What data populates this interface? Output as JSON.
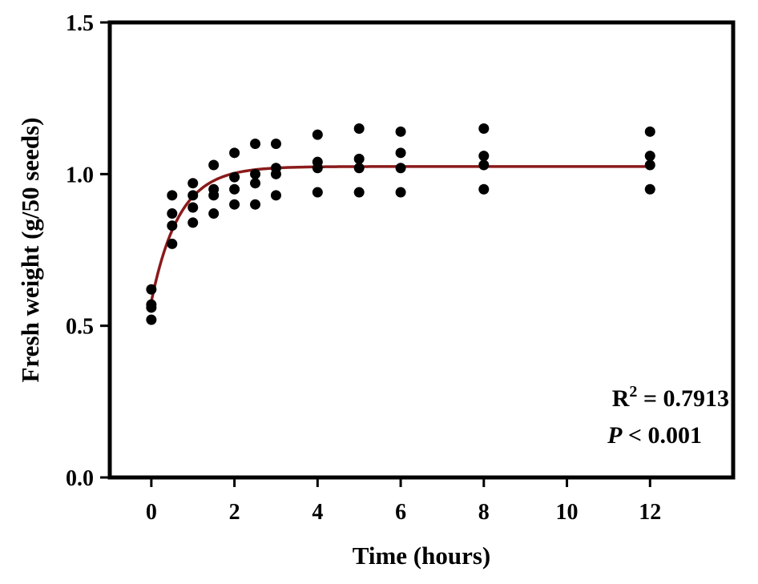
{
  "chart_data": {
    "type": "scatter",
    "xlabel": "Time (hours)",
    "ylabel": "Fresh weight (g/50 seeds)",
    "xlim": [
      -1,
      14
    ],
    "ylim": [
      0.0,
      1.5
    ],
    "x_ticks": [
      0,
      2,
      4,
      6,
      8,
      10,
      12
    ],
    "x_tick_labels": [
      "0",
      "2",
      "4",
      "6",
      "8",
      "10",
      "12"
    ],
    "y_ticks": [
      0.0,
      0.5,
      1.0,
      1.5
    ],
    "y_tick_labels": [
      "0.0",
      "0.5",
      "1.0",
      "1.5"
    ],
    "grid": false,
    "points": [
      {
        "x": 0,
        "y": 0.62
      },
      {
        "x": 0,
        "y": 0.57
      },
      {
        "x": 0,
        "y": 0.56
      },
      {
        "x": 0,
        "y": 0.52
      },
      {
        "x": 0.5,
        "y": 0.93
      },
      {
        "x": 0.5,
        "y": 0.87
      },
      {
        "x": 0.5,
        "y": 0.83
      },
      {
        "x": 0.5,
        "y": 0.77
      },
      {
        "x": 1,
        "y": 0.97
      },
      {
        "x": 1,
        "y": 0.93
      },
      {
        "x": 1,
        "y": 0.89
      },
      {
        "x": 1,
        "y": 0.84
      },
      {
        "x": 1.5,
        "y": 1.03
      },
      {
        "x": 1.5,
        "y": 0.95
      },
      {
        "x": 1.5,
        "y": 0.93
      },
      {
        "x": 1.5,
        "y": 0.87
      },
      {
        "x": 2,
        "y": 1.07
      },
      {
        "x": 2,
        "y": 0.99
      },
      {
        "x": 2,
        "y": 0.95
      },
      {
        "x": 2,
        "y": 0.9
      },
      {
        "x": 2.5,
        "y": 1.1
      },
      {
        "x": 2.5,
        "y": 1.0
      },
      {
        "x": 2.5,
        "y": 0.97
      },
      {
        "x": 2.5,
        "y": 0.9
      },
      {
        "x": 3,
        "y": 1.1
      },
      {
        "x": 3,
        "y": 1.02
      },
      {
        "x": 3,
        "y": 1.0
      },
      {
        "x": 3,
        "y": 0.93
      },
      {
        "x": 4,
        "y": 1.13
      },
      {
        "x": 4,
        "y": 1.04
      },
      {
        "x": 4,
        "y": 1.02
      },
      {
        "x": 4,
        "y": 0.94
      },
      {
        "x": 5,
        "y": 1.15
      },
      {
        "x": 5,
        "y": 1.05
      },
      {
        "x": 5,
        "y": 1.02
      },
      {
        "x": 5,
        "y": 0.94
      },
      {
        "x": 6,
        "y": 1.14
      },
      {
        "x": 6,
        "y": 1.07
      },
      {
        "x": 6,
        "y": 1.02
      },
      {
        "x": 6,
        "y": 0.94
      },
      {
        "x": 8,
        "y": 1.15
      },
      {
        "x": 8,
        "y": 1.06
      },
      {
        "x": 8,
        "y": 1.03
      },
      {
        "x": 8,
        "y": 0.95
      },
      {
        "x": 12,
        "y": 1.14
      },
      {
        "x": 12,
        "y": 1.06
      },
      {
        "x": 12,
        "y": 1.03
      },
      {
        "x": 12,
        "y": 0.95
      }
    ],
    "fit": {
      "type": "exponential",
      "y0": 0.58,
      "plateau": 1.025,
      "rate": 1.5,
      "color": "#8b1a1a"
    },
    "stats": {
      "r2_label": "R",
      "r2_superscript": "2",
      "r2_value": " = 0.7913",
      "p_label": "P",
      "p_value": " < 0.001"
    },
    "marker_color": "#000000",
    "frame_color": "#000000"
  }
}
